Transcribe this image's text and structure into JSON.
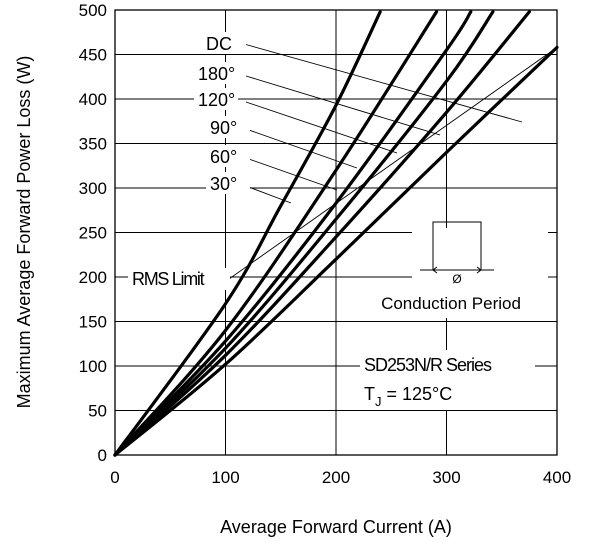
{
  "chart_data": {
    "type": "line",
    "title": "",
    "xlabel": "Average Forward Current (A)",
    "ylabel": "Maximum Average Forward Power Loss (W)",
    "xlim": [
      0,
      400
    ],
    "ylim": [
      0,
      500
    ],
    "xticks": [
      "0",
      "100",
      "200",
      "300",
      "400"
    ],
    "yticks": [
      "0",
      "50",
      "100",
      "150",
      "200",
      "250",
      "300",
      "350",
      "400",
      "450",
      "500"
    ],
    "grid": true,
    "series": [
      {
        "name": "DC",
        "x": [
          0,
          100,
          200,
          300,
          400
        ],
        "y": [
          0,
          102,
          220,
          340,
          458
        ]
      },
      {
        "name": "180°",
        "x": [
          0,
          100,
          200,
          300,
          375
        ],
        "y": [
          0,
          112,
          245,
          385,
          498
        ]
      },
      {
        "name": "120°",
        "x": [
          0,
          100,
          200,
          300,
          342
        ],
        "y": [
          0,
          120,
          265,
          420,
          498
        ]
      },
      {
        "name": "90°",
        "x": [
          0,
          100,
          200,
          300,
          322
        ],
        "y": [
          0,
          128,
          283,
          455,
          498
        ]
      },
      {
        "name": "60°",
        "x": [
          0,
          100,
          200,
          291
        ],
        "y": [
          0,
          140,
          320,
          498
        ]
      },
      {
        "name": "30°",
        "x": [
          0,
          100,
          150,
          200,
          240
        ],
        "y": [
          0,
          170,
          280,
          393,
          498
        ]
      }
    ],
    "rms_limit": {
      "label": "RMS Limit",
      "x": [
        100,
        400
      ],
      "y": [
        195,
        458
      ]
    },
    "annotations": {
      "conduction_label": "Conduction Period",
      "phi_symbol": "Ø",
      "series_name": "SD253N/R Series",
      "tj_main": "T",
      "tj_sub": "J",
      "tj_rest": " = 125°C"
    }
  }
}
